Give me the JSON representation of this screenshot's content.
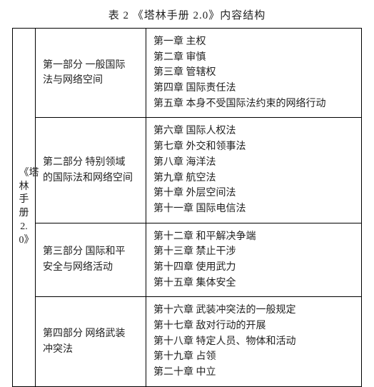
{
  "caption": "表 2 《塔林手册 2.0》内容结构",
  "book_label": "《塔林手册2.0》",
  "parts": [
    {
      "label_line1": "第一部分 一般国际",
      "label_line2": "法与网络空间",
      "chapters": [
        "第一章 主权",
        "第二章 审慎",
        "第三章 管辖权",
        "第四章 国际责任法",
        "第五章 本身不受国际法约束的网络行动"
      ]
    },
    {
      "label_line1": "第二部分 特别领域",
      "label_line2": "的国际法和网络空间",
      "chapters": [
        "第六章 国际人权法",
        "第七章 外交和领事法",
        "第八章 海洋法",
        "第九章 航空法",
        "第十章 外层空间法",
        "第十一章 国际电信法"
      ]
    },
    {
      "label_line1": "第三部分 国际和平",
      "label_line2": "安全与网络活动",
      "chapters": [
        "第十二章 和平解决争端",
        "第十三章 禁止干涉",
        "第十四章 使用武力",
        "第十五章 集体安全"
      ]
    },
    {
      "label_line1": "第四部分 网络武装",
      "label_line2": "冲突法",
      "chapters": [
        "第十六章 武装冲突法的一般规定",
        "第十七章 敌对行动的开展",
        "第十八章 特定人员、物体和活动",
        "第十九章 占领",
        "第二十章 中立"
      ]
    }
  ]
}
